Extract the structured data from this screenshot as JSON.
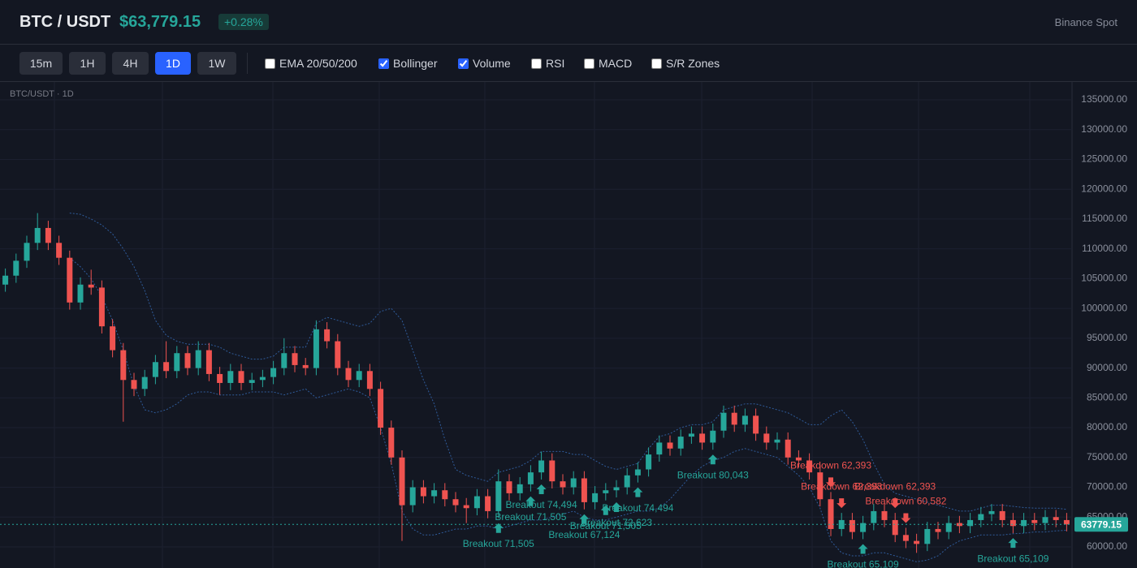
{
  "header": {
    "pair": "BTC / USDT",
    "price": "$63,779.15",
    "change": "+0.28%",
    "exchange": "Binance Spot"
  },
  "toolbar": {
    "timeframes": [
      "15m",
      "1H",
      "4H",
      "1D",
      "1W"
    ],
    "active": 3,
    "indicators": [
      {
        "label": "EMA 20/50/200",
        "checked": false
      },
      {
        "label": "Bollinger",
        "checked": true
      },
      {
        "label": "Volume",
        "checked": true
      },
      {
        "label": "RSI",
        "checked": false
      },
      {
        "label": "MACD",
        "checked": false
      },
      {
        "label": "S/R Zones",
        "checked": false
      }
    ]
  },
  "chart_data": {
    "type": "candlestick",
    "subtitle": "BTC/USDT · 1D",
    "up_color": "#26a69a",
    "down_color": "#ef5350",
    "band_color": "#2f5b9a",
    "ylim": [
      56460,
      138130
    ],
    "yticks": [
      {
        "value": 60000,
        "label": "60000.00"
      },
      {
        "value": 65000,
        "label": "65000.00"
      },
      {
        "value": 70000,
        "label": "70000.00"
      },
      {
        "value": 75000,
        "label": "75000.00"
      },
      {
        "value": 80000,
        "label": "80000.00"
      },
      {
        "value": 85000,
        "label": "85000.00"
      },
      {
        "value": 90000,
        "label": "90000.00"
      },
      {
        "value": 95000,
        "label": "95000.00"
      },
      {
        "value": 100000,
        "label": "100000.00"
      },
      {
        "value": 105000,
        "label": "105000.00"
      },
      {
        "value": 110000,
        "label": "110000.00"
      },
      {
        "value": 115000,
        "label": "115000.00"
      },
      {
        "value": 120000,
        "label": "120000.00"
      },
      {
        "value": 125000,
        "label": "125000.00"
      },
      {
        "value": 130000,
        "label": "130000.00"
      },
      {
        "value": 135000,
        "label": "135000.00"
      }
    ],
    "grid": true,
    "last_price": 63779.15,
    "ohlc": [
      [
        104000,
        106700,
        102800,
        105500
      ],
      [
        105500,
        109200,
        104300,
        108000
      ],
      [
        108000,
        112200,
        106800,
        111000
      ],
      [
        111000,
        116000,
        109800,
        113500
      ],
      [
        113500,
        114700,
        109800,
        111000
      ],
      [
        111000,
        112200,
        107300,
        108500
      ],
      [
        108500,
        109700,
        99800,
        101000
      ],
      [
        101000,
        105200,
        99800,
        104000
      ],
      [
        104000,
        106500,
        102300,
        103500
      ],
      [
        103500,
        104700,
        95800,
        97000
      ],
      [
        97000,
        98200,
        91800,
        93000
      ],
      [
        93000,
        94200,
        81000,
        88000
      ],
      [
        88000,
        89200,
        85300,
        86500
      ],
      [
        86500,
        89700,
        85300,
        88500
      ],
      [
        88500,
        92200,
        87300,
        91000
      ],
      [
        91000,
        94500,
        88300,
        89500
      ],
      [
        89500,
        93700,
        88300,
        92500
      ],
      [
        92500,
        93700,
        88800,
        90000
      ],
      [
        90000,
        94500,
        88800,
        93000
      ],
      [
        93000,
        94200,
        87800,
        89000
      ],
      [
        89000,
        90200,
        85500,
        87500
      ],
      [
        87500,
        90700,
        86300,
        89500
      ],
      [
        89500,
        90700,
        86300,
        87500
      ],
      [
        87500,
        89200,
        86300,
        88000
      ],
      [
        88000,
        89700,
        86800,
        88500
      ],
      [
        88500,
        91200,
        87300,
        90000
      ],
      [
        90000,
        95000,
        88800,
        92500
      ],
      [
        92500,
        93700,
        89300,
        90500
      ],
      [
        90500,
        91700,
        88800,
        90000
      ],
      [
        90000,
        98000,
        88800,
        96500
      ],
      [
        96500,
        97700,
        93300,
        94500
      ],
      [
        94500,
        95700,
        88800,
        90000
      ],
      [
        90000,
        91200,
        86800,
        88000
      ],
      [
        88000,
        90700,
        86800,
        89500
      ],
      [
        89500,
        90700,
        85300,
        86500
      ],
      [
        86500,
        87700,
        78800,
        80000
      ],
      [
        80000,
        81200,
        73800,
        75000
      ],
      [
        75000,
        76200,
        61000,
        67000
      ],
      [
        67000,
        71200,
        65800,
        70000
      ],
      [
        70000,
        71200,
        67300,
        68500
      ],
      [
        68500,
        70700,
        67300,
        69500
      ],
      [
        69500,
        70700,
        66800,
        68000
      ],
      [
        68000,
        69200,
        65800,
        67000
      ],
      [
        67000,
        68200,
        64000,
        66500
      ],
      [
        66500,
        69700,
        65300,
        68500
      ],
      [
        68500,
        69700,
        64800,
        66000
      ],
      [
        66000,
        73000,
        64800,
        71000
      ],
      [
        71000,
        72200,
        67800,
        69000
      ],
      [
        69000,
        71700,
        67800,
        70500
      ],
      [
        70500,
        73700,
        69300,
        72500
      ],
      [
        72500,
        76000,
        71300,
        74500
      ],
      [
        74500,
        75700,
        69800,
        71000
      ],
      [
        71000,
        72200,
        68800,
        70000
      ],
      [
        70000,
        72700,
        68800,
        71500
      ],
      [
        71500,
        72700,
        66300,
        67500
      ],
      [
        67500,
        70200,
        66300,
        69000
      ],
      [
        69000,
        70700,
        67800,
        69500
      ],
      [
        69500,
        71200,
        68300,
        70000
      ],
      [
        70000,
        73200,
        68800,
        72000
      ],
      [
        72000,
        74200,
        70800,
        73000
      ],
      [
        73000,
        76700,
        71800,
        75500
      ],
      [
        75500,
        78700,
        74300,
        77500
      ],
      [
        77500,
        78700,
        75300,
        76500
      ],
      [
        76500,
        79700,
        75300,
        78500
      ],
      [
        78500,
        80200,
        77300,
        79000
      ],
      [
        79000,
        80200,
        76300,
        77500
      ],
      [
        77500,
        80700,
        76300,
        79500
      ],
      [
        79500,
        83700,
        78300,
        82500
      ],
      [
        82500,
        83700,
        79300,
        80500
      ],
      [
        80500,
        83200,
        79300,
        82000
      ],
      [
        82000,
        83200,
        77800,
        79000
      ],
      [
        79000,
        80200,
        76300,
        77500
      ],
      [
        77500,
        79200,
        76300,
        78000
      ],
      [
        78000,
        79200,
        73800,
        75000
      ],
      [
        75000,
        76200,
        73300,
        74500
      ],
      [
        74500,
        75700,
        71300,
        72500
      ],
      [
        72500,
        73700,
        66800,
        68000
      ],
      [
        68000,
        69200,
        61800,
        63000
      ],
      [
        63000,
        65700,
        61800,
        64500
      ],
      [
        64500,
        65700,
        61300,
        62500
      ],
      [
        62500,
        65200,
        61300,
        64000
      ],
      [
        64000,
        67200,
        62800,
        66000
      ],
      [
        66000,
        67200,
        63300,
        64500
      ],
      [
        64500,
        65700,
        60800,
        62000
      ],
      [
        62000,
        63200,
        59800,
        61000
      ],
      [
        61000,
        62200,
        59000,
        60500
      ],
      [
        60500,
        64200,
        59300,
        63000
      ],
      [
        63000,
        64200,
        61300,
        62500
      ],
      [
        62500,
        65200,
        61300,
        64000
      ],
      [
        64000,
        65200,
        62300,
        63500
      ],
      [
        63500,
        65700,
        62300,
        64500
      ],
      [
        64500,
        66700,
        63300,
        65500
      ],
      [
        65500,
        67200,
        64300,
        66000
      ],
      [
        66000,
        67200,
        63300,
        64500
      ],
      [
        64500,
        65700,
        62300,
        63500
      ],
      [
        63500,
        65700,
        62300,
        64500
      ],
      [
        64500,
        65700,
        62800,
        64000
      ],
      [
        64000,
        66200,
        62800,
        65000
      ],
      [
        65000,
        66200,
        63300,
        64500
      ],
      [
        64500,
        65700,
        62600,
        63779.15
      ]
    ],
    "bollinger": {
      "upper": [
        null,
        null,
        null,
        null,
        null,
        null,
        116000,
        115800,
        115000,
        114000,
        112500,
        110000,
        107000,
        103000,
        98000,
        95500,
        94500,
        94000,
        94000,
        94000,
        93500,
        92500,
        92000,
        91500,
        91500,
        92000,
        93500,
        93500,
        93500,
        97500,
        98500,
        98000,
        97500,
        97000,
        97500,
        99500,
        100000,
        98000,
        93000,
        88000,
        84000,
        78000,
        73000,
        72000,
        71500,
        71000,
        72500,
        73000,
        73500,
        74500,
        76000,
        76000,
        76000,
        75500,
        75500,
        74500,
        73500,
        73000,
        73500,
        74000,
        76500,
        78500,
        79000,
        80000,
        80500,
        80500,
        81000,
        83000,
        83500,
        84000,
        84000,
        83500,
        83000,
        82500,
        81500,
        80500,
        80500,
        82000,
        83000,
        81000,
        78000,
        74000,
        70500,
        69000,
        68500,
        68000,
        67500,
        67000,
        66500,
        66000,
        66000,
        66500,
        67000,
        67000,
        66800,
        66600,
        66500,
        66500,
        66500,
        66300
      ],
      "lower": [
        null,
        null,
        null,
        null,
        null,
        null,
        108500,
        107000,
        105000,
        102000,
        98000,
        93000,
        87000,
        83000,
        82500,
        83000,
        84000,
        85500,
        86000,
        86000,
        85500,
        85500,
        85500,
        86000,
        86000,
        86000,
        85500,
        86000,
        86500,
        85000,
        85500,
        86000,
        86500,
        86000,
        85000,
        80000,
        74000,
        66000,
        63000,
        62000,
        62000,
        62500,
        63000,
        63000,
        63500,
        63500,
        63000,
        63500,
        64000,
        64500,
        64500,
        65000,
        65500,
        66000,
        65000,
        64500,
        64500,
        65000,
        65500,
        66000,
        66000,
        66500,
        68000,
        70000,
        72000,
        73500,
        74500,
        75000,
        76000,
        76500,
        76000,
        75500,
        75000,
        73500,
        72000,
        70000,
        66500,
        61000,
        59000,
        58500,
        58500,
        59000,
        59000,
        58500,
        58000,
        57500,
        57800,
        58500,
        60000,
        61000,
        61500,
        62000,
        62000,
        62000,
        62200,
        62300,
        62500,
        62500,
        62700,
        62800
      ]
    },
    "annotations": [
      {
        "text": "Breakout 71,505",
        "index": 46,
        "color": "#26a69a",
        "direction": "up"
      },
      {
        "text": "Breakout 74,494",
        "index": 50,
        "color": "#26a69a",
        "direction": "up"
      },
      {
        "text": "Breakout 71,505",
        "index": 49,
        "color": "#26a69a",
        "direction": "up"
      },
      {
        "text": "Breakout 67,124",
        "index": 54,
        "color": "#26a69a",
        "direction": "up"
      },
      {
        "text": "Breakout 72,623",
        "index": 57,
        "color": "#26a69a",
        "direction": "up"
      },
      {
        "text": "Breakout 71,505",
        "index": 56,
        "color": "#26a69a",
        "direction": "up"
      },
      {
        "text": "Breakout 74,494",
        "index": 59,
        "color": "#26a69a",
        "direction": "up"
      },
      {
        "text": "Breakout 80,043",
        "index": 66,
        "color": "#26a69a",
        "direction": "up"
      },
      {
        "text": "Breakdown 62,393",
        "index": 77,
        "color": "#ef5350",
        "direction": "down"
      },
      {
        "text": "Breakdown 62,393",
        "index": 78,
        "color": "#ef5350",
        "direction": "down"
      },
      {
        "text": "Breakdown 62,393",
        "index": 83,
        "color": "#ef5350",
        "direction": "down"
      },
      {
        "text": "Breakdown 60,582",
        "index": 84,
        "color": "#ef5350",
        "direction": "down"
      },
      {
        "text": "Breakout 65,109",
        "index": 80,
        "color": "#26a69a",
        "direction": "up"
      },
      {
        "text": "Breakout 65,109",
        "index": 94,
        "color": "#26a69a",
        "direction": "up"
      }
    ]
  }
}
